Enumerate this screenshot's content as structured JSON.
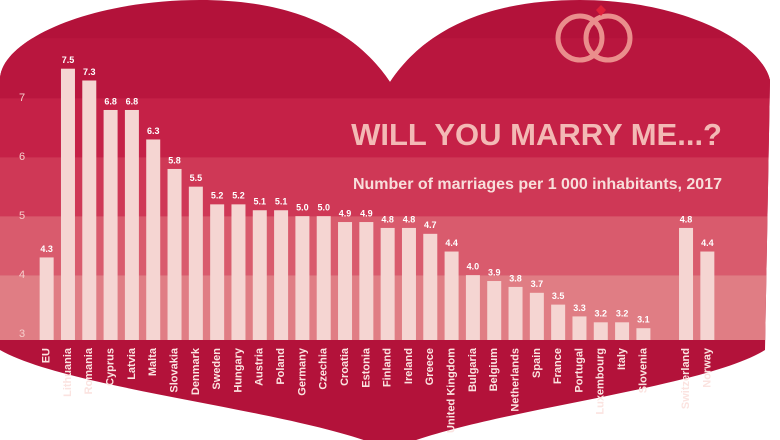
{
  "chart_data": {
    "type": "bar",
    "title": "WILL YOU MARRY ME...?",
    "subtitle": "Number of marriages per 1 000 inhabitants, 2017",
    "categories": [
      "EU",
      "Lithuania",
      "Romania",
      "Cyprus",
      "Latvia",
      "Malta",
      "Slovakia",
      "Denmark",
      "Sweden",
      "Hungary",
      "Austria",
      "Poland",
      "Germany",
      "Czechia",
      "Croatia",
      "Estonia",
      "Finland",
      "Ireland",
      "Greece",
      "United Kingdom",
      "Bulgaria",
      "Belgium",
      "Netherlands",
      "Spain",
      "France",
      "Portugal",
      "Luxembourg",
      "Italy",
      "Slovenia",
      null,
      "Switzerland",
      "Norway"
    ],
    "values": [
      4.3,
      7.5,
      7.3,
      6.8,
      6.8,
      6.3,
      5.8,
      5.5,
      5.2,
      5.2,
      5.1,
      5.1,
      5.0,
      5.0,
      4.9,
      4.9,
      4.8,
      4.8,
      4.7,
      4.4,
      4.0,
      3.9,
      3.8,
      3.7,
      3.5,
      3.3,
      3.2,
      3.2,
      3.1,
      null,
      4.8,
      4.4
    ],
    "value_labels": [
      "4.3",
      "7.5",
      "7.3",
      "6.8",
      "6.8",
      "6.3",
      "5.8",
      "5.5",
      "5.2",
      "5.2",
      "5.1",
      "5.1",
      "5.0",
      "5.0",
      "4.9",
      "4.9",
      "4.8",
      "4.8",
      "4.7",
      "4.4",
      "4.0",
      "3.9",
      "3.8",
      "3.7",
      "3.5",
      "3.3",
      "3.2",
      "3.2",
      "3.1",
      null,
      "4.8",
      "4.4"
    ],
    "color": "#f5d5d2",
    "ylim": [
      2.9,
      7.8
    ],
    "yticks": [
      3,
      4,
      5,
      6,
      7
    ]
  }
}
